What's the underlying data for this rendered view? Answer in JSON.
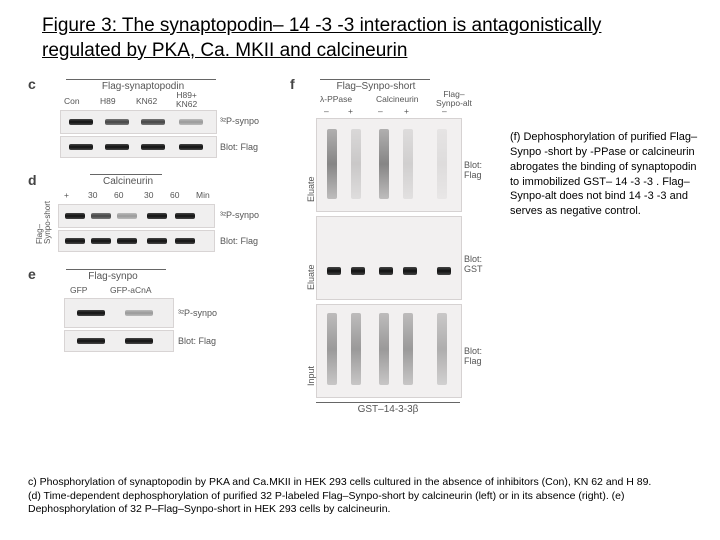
{
  "title": "Figure 3: The synaptopodin– 14 -3 -3 interaction is antagonistically regulated by PKA, Ca. MKII and calcineurin",
  "panel_c": {
    "label": "c",
    "header": "Flag-synaptopodin",
    "lanes": [
      "Con",
      "H89",
      "KN62",
      "H89+\nKN62"
    ],
    "row1_label": "³²P-synpo",
    "row2_label": "Blot: Flag"
  },
  "panel_d": {
    "label": "d",
    "vlabel": "Flag–\nSynpo-short",
    "header": "Calcineurin",
    "sublanes_left": [
      "+",
      "30",
      "60",
      "30",
      "60"
    ],
    "minutes": "Min",
    "row1_label": "³²P-synpo",
    "row2_label": "Blot: Flag"
  },
  "panel_e": {
    "label": "e",
    "header": "Flag-synpo",
    "lanes": [
      "GFP",
      "GFP-aCnA"
    ],
    "row1_label": "³²P-synpo",
    "row2_label": "Blot: Flag"
  },
  "panel_f": {
    "label": "f",
    "top_header": "Flag–Synpo-short",
    "col_headers": [
      "λ-PPase",
      "Calcineurin"
    ],
    "sign_row": [
      "–",
      "+",
      "–",
      "+",
      "−"
    ],
    "flag_alt": "Flag–\nSynpo-alt",
    "row_labels": [
      "Eluate",
      "Eluate",
      "Input"
    ],
    "blot_labels": [
      "Blot: Flag",
      "Blot: GST",
      "Blot: Flag"
    ],
    "bottom": "GST–14-3-3β"
  },
  "caption_right": "(f) Dephosphorylation of purified Flag–Synpo -short by -PPase or calcineurin abrogates the binding of synaptopodin to immobilized GST– 14 -3 -3 . Flag–Synpo-alt does not bind 14 -3 -3 and serves as negative control.",
  "caption_bottom": "c) Phosphorylation of synaptopodin by PKA and Ca.MKII in HEK 293 cells cultured in the absence of inhibitors (Con), KN 62 and H 89.\n(d) Time-dependent dephosphorylation of purified 32 P-labeled Flag–Synpo-short by calcineurin (left) or in its absence (right). (e) Dephosphorylation of 32 P–Flag–Synpo-short in HEK 293 cells by calcineurin.",
  "styling": {
    "band_color_dark": "#222222",
    "band_color_mid": "#666666",
    "band_color_faint": "#aaaaaa",
    "blot_bg": "#f0efef",
    "text_color": "#000000",
    "label_color": "#555555"
  }
}
